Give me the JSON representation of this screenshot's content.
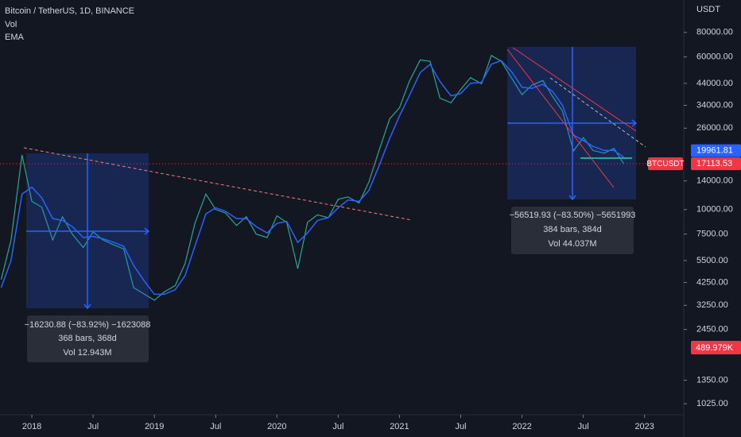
{
  "header": {
    "symbol": "Bitcoin / TetherUS, 1D, BINANCE",
    "volume": "Vol"
  },
  "chart_data": {
    "type": "line",
    "log_scale": true,
    "y_unit": "USDT",
    "x": [
      2017.75,
      2017.83,
      2017.92,
      2018.0,
      2018.08,
      2018.17,
      2018.25,
      2018.33,
      2018.42,
      2018.5,
      2018.58,
      2018.67,
      2018.75,
      2018.83,
      2018.92,
      2019.0,
      2019.08,
      2019.17,
      2019.25,
      2019.33,
      2019.42,
      2019.5,
      2019.58,
      2019.67,
      2019.75,
      2019.83,
      2019.92,
      2020.0,
      2020.08,
      2020.17,
      2020.25,
      2020.33,
      2020.42,
      2020.5,
      2020.58,
      2020.67,
      2020.75,
      2020.83,
      2020.92,
      2021.0,
      2021.08,
      2021.17,
      2021.25,
      2021.33,
      2021.42,
      2021.5,
      2021.58,
      2021.67,
      2021.75,
      2021.83,
      2021.92,
      2022.0,
      2022.08,
      2022.17,
      2022.25,
      2022.33,
      2022.42,
      2022.5,
      2022.58,
      2022.67,
      2022.75,
      2022.83
    ],
    "series": [
      {
        "name": "BTCUSDT",
        "color": "#26a69a",
        "values": [
          4400,
          7000,
          19000,
          11000,
          10300,
          7000,
          9200,
          7500,
          6400,
          7700,
          7000,
          6600,
          6300,
          4000,
          3700,
          3450,
          3800,
          4100,
          5300,
          8500,
          12000,
          10000,
          9600,
          8300,
          9200,
          7500,
          7200,
          9300,
          8600,
          5000,
          8600,
          9400,
          9100,
          11300,
          11600,
          10800,
          13800,
          19700,
          29000,
          33000,
          45000,
          58000,
          57000,
          37000,
          35000,
          41000,
          47000,
          43800,
          61000,
          57000,
          46300,
          38500,
          43000,
          45500,
          37700,
          31800,
          19900,
          23300,
          20000,
          19400,
          20500,
          17100
        ]
      },
      {
        "name": "EMA",
        "color": "#2962ff",
        "values": [
          4000,
          5500,
          12000,
          13000,
          11500,
          9000,
          8800,
          8200,
          7200,
          7300,
          7100,
          6800,
          6500,
          5200,
          4300,
          3700,
          3700,
          3900,
          4600,
          6500,
          9500,
          10200,
          9800,
          9000,
          9000,
          8200,
          7600,
          8500,
          8700,
          6800,
          7600,
          8800,
          9100,
          10200,
          11200,
          11000,
          12500,
          16500,
          23000,
          30000,
          38000,
          50000,
          55000,
          45000,
          38000,
          39000,
          44000,
          44500,
          55000,
          57500,
          50000,
          42000,
          41500,
          43500,
          40000,
          34000,
          24000,
          22500,
          21000,
          20000,
          20000,
          18500
        ]
      }
    ],
    "ylim": [
      900,
      117000
    ],
    "yticks": [
      {
        "value": 80000,
        "label": "80000.00"
      },
      {
        "value": 60000,
        "label": "60000.00"
      },
      {
        "value": 44000,
        "label": "44000.00"
      },
      {
        "value": 34000,
        "label": "34000.00"
      },
      {
        "value": 26000,
        "label": "26000.00"
      },
      {
        "value": 14000,
        "label": "14000.00"
      },
      {
        "value": 10000,
        "label": "10000.00"
      },
      {
        "value": 7500,
        "label": "7500.00"
      },
      {
        "value": 5500,
        "label": "5500.00"
      },
      {
        "value": 4250,
        "label": "4250.00"
      },
      {
        "value": 3250,
        "label": "3250.00"
      },
      {
        "value": 2450,
        "label": "2450.00"
      },
      {
        "value": 1350,
        "label": "1350.00"
      },
      {
        "value": 1025,
        "label": "1025.00"
      }
    ],
    "xlim": [
      2017.74,
      2023.32
    ],
    "xticks": [
      {
        "value": 2018,
        "label": "2018"
      },
      {
        "value": 2018.5,
        "label": "Jul"
      },
      {
        "value": 2019,
        "label": "2019"
      },
      {
        "value": 2019.5,
        "label": "Jul"
      },
      {
        "value": 2020,
        "label": "2020"
      },
      {
        "value": 2020.5,
        "label": "Jul"
      },
      {
        "value": 2021,
        "label": "2021"
      },
      {
        "value": 2021.5,
        "label": "Jul"
      },
      {
        "value": 2022,
        "label": "2022"
      },
      {
        "value": 2022.5,
        "label": "Jul"
      },
      {
        "value": 2023,
        "label": "2023"
      }
    ],
    "price_labels": [
      {
        "value": 19961.81,
        "label": "19961.81",
        "color": "#2962ff"
      },
      {
        "value": 17113.53,
        "label": "17113.53",
        "color": "#f23645"
      }
    ],
    "volume_label": "489.979K"
  },
  "measurements": [
    {
      "lines": [
        "−16230.88 (−83.92%) −1623088",
        "368 bars, 368d",
        "Vol 12.943M"
      ]
    },
    {
      "lines": [
        "−56519.93 (−83.50%) −5651993",
        "384 bars, 384d",
        "Vol 44.037M"
      ]
    }
  ]
}
